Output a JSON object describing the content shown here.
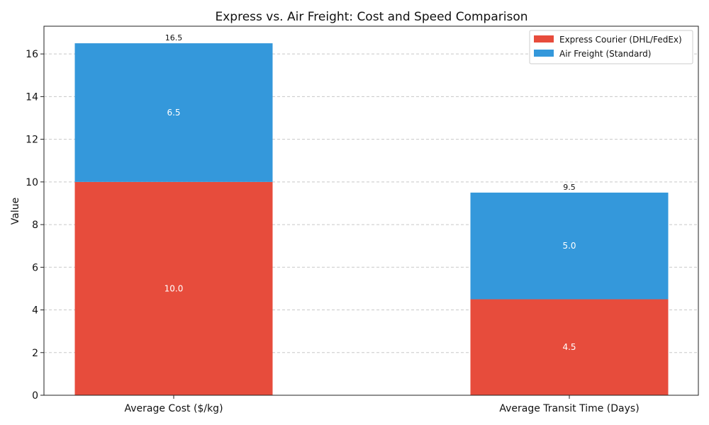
{
  "chart_data": {
    "type": "bar",
    "stacked": true,
    "title": "Express vs. Air Freight: Cost and Speed Comparison",
    "xlabel": "",
    "ylabel": "Value",
    "categories": [
      "Average Cost ($/kg)",
      "Average Transit Time (Days)"
    ],
    "series": [
      {
        "name": "Express Courier (DHL/FedEx)",
        "values": [
          10.0,
          4.5
        ],
        "color": "#e74c3c",
        "labels": [
          "10.0",
          "4.5"
        ]
      },
      {
        "name": "Air Freight (Standard)",
        "values": [
          6.5,
          5.0
        ],
        "color": "#3498db",
        "labels": [
          "6.5",
          "5.0"
        ]
      }
    ],
    "totals": [
      "16.5",
      "9.5"
    ],
    "ylim": [
      0,
      17.3
    ],
    "yticks": [
      0,
      2,
      4,
      6,
      8,
      10,
      12,
      14,
      16
    ],
    "grid": true,
    "legend_position": "top-right"
  }
}
